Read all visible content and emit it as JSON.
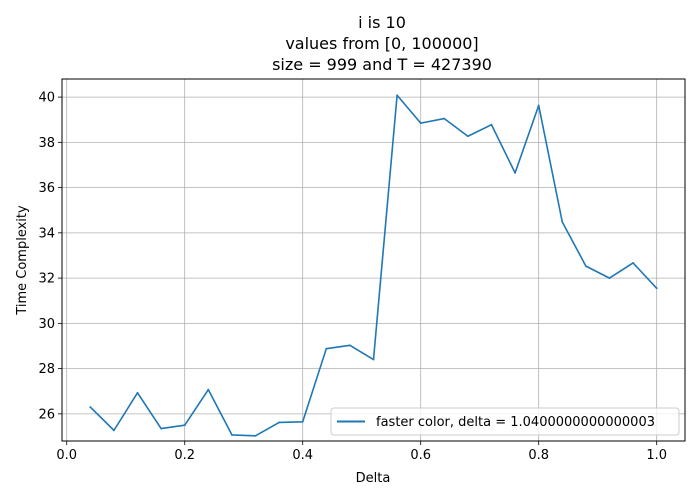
{
  "chart_data": {
    "type": "line",
    "title_lines": [
      "i is 10",
      "values from [0, 100000]",
      "size = 999 and T = 427390"
    ],
    "xlabel": "Delta",
    "ylabel": "Time Complexity",
    "xlim": [
      -0.008,
      1.048
    ],
    "ylim": [
      24.8,
      40.8
    ],
    "xticks": [
      0.0,
      0.2,
      0.4,
      0.6,
      0.8,
      1.0
    ],
    "xtick_labels": [
      "0.0",
      "0.2",
      "0.4",
      "0.6",
      "0.8",
      "1.0"
    ],
    "yticks": [
      26,
      28,
      30,
      32,
      34,
      36,
      38,
      40
    ],
    "ytick_labels": [
      "26",
      "28",
      "30",
      "32",
      "34",
      "36",
      "38",
      "40"
    ],
    "grid": true,
    "legend_position": "lower-right",
    "series": [
      {
        "name": "faster color, delta = 1.0400000000000003",
        "color": "#1f77b4",
        "x": [
          0.04,
          0.08,
          0.12,
          0.16,
          0.2,
          0.24,
          0.28,
          0.32,
          0.36,
          0.4,
          0.44,
          0.48,
          0.52,
          0.56,
          0.6,
          0.64,
          0.68,
          0.72,
          0.76,
          0.8,
          0.84,
          0.88,
          0.92,
          0.96,
          1.0
        ],
        "y": [
          26.3,
          25.27,
          26.93,
          25.35,
          25.5,
          27.07,
          25.07,
          25.03,
          25.62,
          25.65,
          28.88,
          29.03,
          28.4,
          40.08,
          38.85,
          39.05,
          38.27,
          38.78,
          36.65,
          39.63,
          34.48,
          32.53,
          32.0,
          32.67,
          31.55
        ]
      }
    ]
  }
}
